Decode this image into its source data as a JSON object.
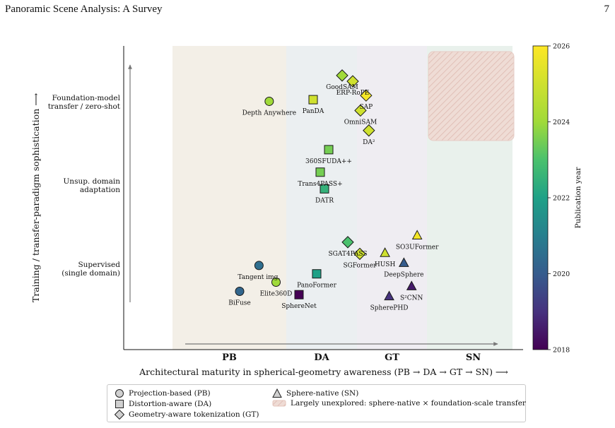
{
  "header": {
    "title": "Panoramic Scene Analysis: A Survey",
    "page_number": "7"
  },
  "chart_data": {
    "type": "scatter",
    "xlabel": "Architectural maturity in spherical-geometry awareness  (PB → DA → GT → SN) ⟶",
    "ylabel": "Training / transfer-paradigm sophistication  ⟶",
    "columns": [
      {
        "key": "PB",
        "label": "PB",
        "color": "#f3efe7"
      },
      {
        "key": "DA",
        "label": "DA",
        "color": "#ebeff1"
      },
      {
        "key": "GT",
        "label": "GT",
        "color": "#efedf2"
      },
      {
        "key": "SN",
        "label": "SN",
        "color": "#e9f1ec"
      }
    ],
    "y_levels": [
      {
        "label": "Supervised\n(single domain)",
        "value": 0
      },
      {
        "label": "Unsup. domain\nadaptation",
        "value": 1
      },
      {
        "label": "Foundation-model\ntransfer / zero-shot",
        "value": 2
      }
    ],
    "colorbar": {
      "label": "Publication year",
      "min": 2018,
      "max": 2026,
      "ticks": [
        "2018",
        "2020",
        "2022",
        "2024",
        "2026"
      ]
    },
    "unexplored_region_label": "Largely unexplored: sphere-native × foundation-scale transfer",
    "methods": [
      {
        "name": "Depth Anywhere",
        "family": "PB",
        "year": 2024,
        "x": 0.85,
        "y": 2.03
      },
      {
        "name": "Tangent img.",
        "family": "PB",
        "year": 2020.5,
        "x": 0.76,
        "y": 0.06
      },
      {
        "name": "Elite360D",
        "family": "PB",
        "year": 2024,
        "x": 0.91,
        "y": -0.14
      },
      {
        "name": "BiFuse",
        "family": "PB",
        "year": 2020.3,
        "x": 0.59,
        "y": -0.25
      },
      {
        "name": "PanDA",
        "family": "DA",
        "year": 2025,
        "x": 1.38,
        "y": 2.05
      },
      {
        "name": "360SFUDA++",
        "family": "DA",
        "year": 2023.5,
        "x": 1.6,
        "y": 1.45
      },
      {
        "name": "Trans4PASS+",
        "family": "DA",
        "year": 2023.5,
        "x": 1.48,
        "y": 1.18
      },
      {
        "name": "DATR",
        "family": "DA",
        "year": 2022.5,
        "x": 1.54,
        "y": 0.98
      },
      {
        "name": "PanoFormer",
        "family": "DA",
        "year": 2022,
        "x": 1.43,
        "y": -0.04
      },
      {
        "name": "SphereNet",
        "family": "DA",
        "year": 2018,
        "x": 1.18,
        "y": -0.29
      },
      {
        "name": "GoodSAM",
        "family": "GT",
        "year": 2024,
        "x": 1.79,
        "y": 2.34
      },
      {
        "name": "ERP-RoPE",
        "family": "GT",
        "year": 2025,
        "x": 1.94,
        "y": 2.27
      },
      {
        "name": "SAP",
        "family": "GT",
        "year": 2025.8,
        "x": 2.13,
        "y": 2.1
      },
      {
        "name": "OmniSAM",
        "family": "GT",
        "year": 2025,
        "x": 2.05,
        "y": 1.92
      },
      {
        "name": "DA²",
        "family": "GT",
        "year": 2025,
        "x": 2.17,
        "y": 1.68
      },
      {
        "name": "SGAT4PASS",
        "family": "GT",
        "year": 2023,
        "x": 1.87,
        "y": 0.34
      },
      {
        "name": "SGFormer",
        "family": "GT",
        "year": 2025,
        "x": 2.04,
        "y": 0.2
      },
      {
        "name": "HUSH",
        "family": "SN",
        "year": 2025,
        "x": 2.4,
        "y": 0.21
      },
      {
        "name": "DeepSphere",
        "family": "SN",
        "year": 2020,
        "x": 2.67,
        "y": 0.09
      },
      {
        "name": "SO3UFormer",
        "family": "SN",
        "year": 2025.8,
        "x": 2.86,
        "y": 0.42
      },
      {
        "name": "S²CNN",
        "family": "SN",
        "year": 2018.5,
        "x": 2.78,
        "y": -0.19
      },
      {
        "name": "SpherePHD",
        "family": "SN",
        "year": 2019,
        "x": 2.46,
        "y": -0.31
      }
    ]
  },
  "legend": {
    "items": [
      {
        "marker": "circle",
        "label": "Projection-based (PB)"
      },
      {
        "marker": "square",
        "label": "Distortion-aware (DA)"
      },
      {
        "marker": "diamond",
        "label": "Geometry-aware tokenization (GT)"
      },
      {
        "marker": "triangle",
        "label": "Sphere-native (SN)"
      },
      {
        "marker": "hatch",
        "label": "Largely unexplored: sphere-native × foundation-scale transfer"
      }
    ]
  }
}
